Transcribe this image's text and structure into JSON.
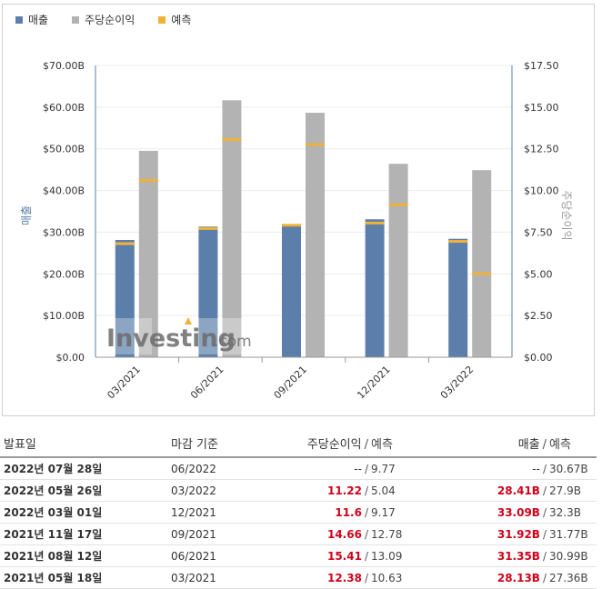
{
  "legend": [
    {
      "label": "매출",
      "color": "#5b7faa"
    },
    {
      "label": "주당순이익",
      "color": "#b3b3b3"
    },
    {
      "label": "예측",
      "color": "#f0b13a"
    }
  ],
  "watermark": {
    "brand": "Investing",
    "suffix": ".com"
  },
  "chart_data": {
    "type": "bar",
    "categories": [
      "03/2021",
      "06/2021",
      "09/2021",
      "12/2021",
      "03/2022"
    ],
    "series": [
      {
        "name": "매출",
        "axis": "left",
        "values": [
          28.13,
          31.35,
          31.92,
          33.09,
          28.41
        ],
        "forecast": [
          27.36,
          30.99,
          31.77,
          32.3,
          27.9
        ],
        "color": "#5b7faa"
      },
      {
        "name": "주당순이익",
        "axis": "right",
        "values": [
          12.38,
          15.41,
          14.66,
          11.6,
          11.22
        ],
        "forecast": [
          10.63,
          13.09,
          12.78,
          9.17,
          5.04
        ],
        "color": "#b3b3b3"
      }
    ],
    "forecast_color": "#f0b13a",
    "ylabel": "매출",
    "y2label": "주당순이익",
    "ylim": [
      0,
      70
    ],
    "y2lim": [
      0,
      17.5
    ],
    "yticks": [
      "$0.00",
      "$10.00B",
      "$20.00B",
      "$30.00B",
      "$40.00B",
      "$50.00B",
      "$60.00B",
      "$70.00B"
    ],
    "y2ticks": [
      "$0.00",
      "$2.50",
      "$5.00",
      "$7.50",
      "$10.00",
      "$12.50",
      "$15.00",
      "$17.50"
    ],
    "grid": true,
    "legend_position": "top-left"
  },
  "table": {
    "headers": {
      "date": "발표일",
      "period": "마감 기준",
      "eps": "주당순이익",
      "eps_fc": "예측",
      "rev": "매출",
      "rev_fc": "예측",
      "slash": "/"
    },
    "rows": [
      {
        "date": "2022년 07월 28일",
        "period": "06/2022",
        "eps": "--",
        "eps_fc": "9.77",
        "rev": "--",
        "rev_fc": "30.67B"
      },
      {
        "date": "2022년 05월 26일",
        "period": "03/2022",
        "eps": "11.22",
        "eps_fc": "5.04",
        "rev": "28.41B",
        "rev_fc": "27.9B"
      },
      {
        "date": "2022년 03월 01일",
        "period": "12/2021",
        "eps": "11.6",
        "eps_fc": "9.17",
        "rev": "33.09B",
        "rev_fc": "32.3B"
      },
      {
        "date": "2021년 11월 17일",
        "period": "09/2021",
        "eps": "14.66",
        "eps_fc": "12.78",
        "rev": "31.92B",
        "rev_fc": "31.77B"
      },
      {
        "date": "2021년 08월 12일",
        "period": "06/2021",
        "eps": "15.41",
        "eps_fc": "13.09",
        "rev": "31.35B",
        "rev_fc": "30.99B"
      },
      {
        "date": "2021년 05월 18일",
        "period": "03/2021",
        "eps": "12.38",
        "eps_fc": "10.63",
        "rev": "28.13B",
        "rev_fc": "27.36B"
      }
    ]
  }
}
